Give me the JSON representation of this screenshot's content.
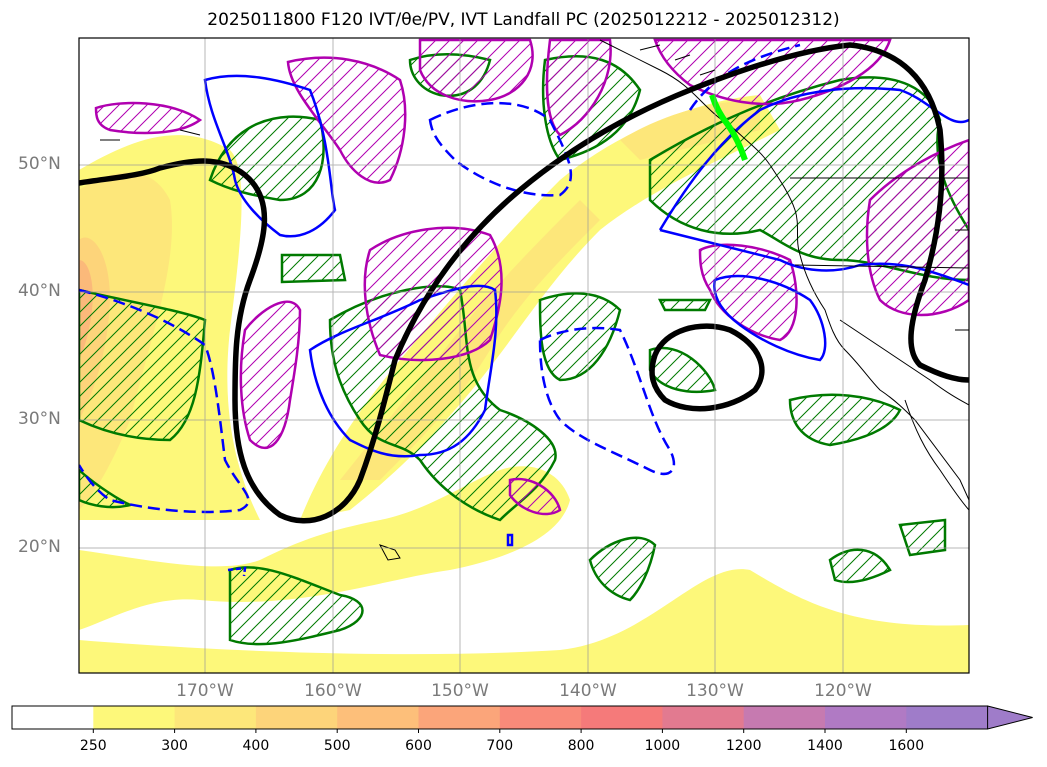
{
  "title": "2025011800 F120 IVT/θe/PV, IVT Landfall PC (2025012212 - 2025012312)",
  "map": {
    "lat_labels": [
      "50°N",
      "40°N",
      "30°N",
      "20°N"
    ],
    "lon_labels": [
      "170°W",
      "160°W",
      "150°W",
      "140°W",
      "130°W",
      "120°W"
    ]
  },
  "colorbar": {
    "ticks": [
      "250",
      "300",
      "400",
      "500",
      "600",
      "700",
      "800",
      "1000",
      "1200",
      "1400",
      "1600"
    ],
    "colors": [
      "#ffffff",
      "#fdf87a",
      "#fde77a",
      "#fdd47a",
      "#fdbf7a",
      "#fba57a",
      "#f98a7a",
      "#f57a7a",
      "#e27a90",
      "#c67ab0",
      "#b07ac4",
      "#9f7cc9"
    ]
  },
  "colors": {
    "ivt_fill": "#fdf87a",
    "ivt_fill_mid": "#fde77a",
    "ivt_fill_high": "#fdd47a",
    "theta_line": "#000000",
    "pc_contour": "#0000ff",
    "hatch_green": "#007a00",
    "hatch_magenta": "#b000b0",
    "landfall_line": "#00ff00",
    "coast": "#000000",
    "grid": "#999999"
  }
}
